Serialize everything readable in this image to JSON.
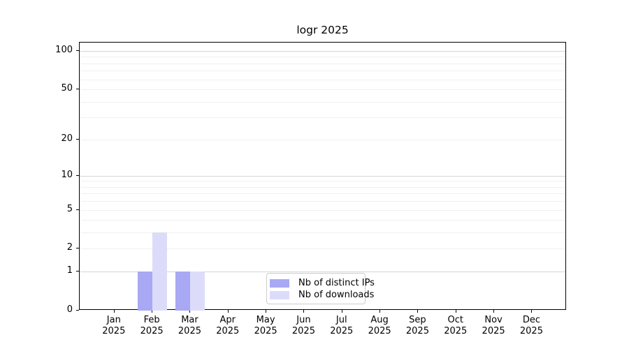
{
  "chart_data": {
    "type": "bar",
    "title": "logr 2025",
    "xlabel": "",
    "ylabel": "",
    "categories": [
      "Jan 2025",
      "Feb 2025",
      "Mar 2025",
      "Apr 2025",
      "May 2025",
      "Jun 2025",
      "Jul 2025",
      "Aug 2025",
      "Sep 2025",
      "Oct 2025",
      "Nov 2025",
      "Dec 2025"
    ],
    "series": [
      {
        "name": "Nb of distinct IPs",
        "color": "#a8a8f4",
        "values": [
          0,
          1,
          1,
          0,
          0,
          0,
          0,
          0,
          0,
          0,
          0,
          0
        ]
      },
      {
        "name": "Nb of downloads",
        "color": "#dcdcfa",
        "values": [
          0,
          3,
          1,
          0,
          0,
          0,
          0,
          0,
          0,
          0,
          0,
          0
        ]
      }
    ],
    "yscale": {
      "type": "log1p",
      "min": 0,
      "max": 116,
      "labeled_ticks": [
        0,
        1,
        2,
        5,
        10,
        20,
        50,
        100
      ],
      "major_gridlines": [
        1,
        10,
        100
      ],
      "minor_gridlines": [
        2,
        3,
        4,
        5,
        6,
        7,
        8,
        9,
        20,
        30,
        40,
        50,
        60,
        70,
        80,
        90
      ]
    },
    "legend_position": "lower center inside",
    "grid": true
  },
  "colors": {
    "background": "#ffffff",
    "spine": "#000000",
    "grid_major": "#d4d4d4",
    "grid_minor": "#f0f0f0",
    "text": "#000000",
    "legend_border": "#cccccc"
  }
}
